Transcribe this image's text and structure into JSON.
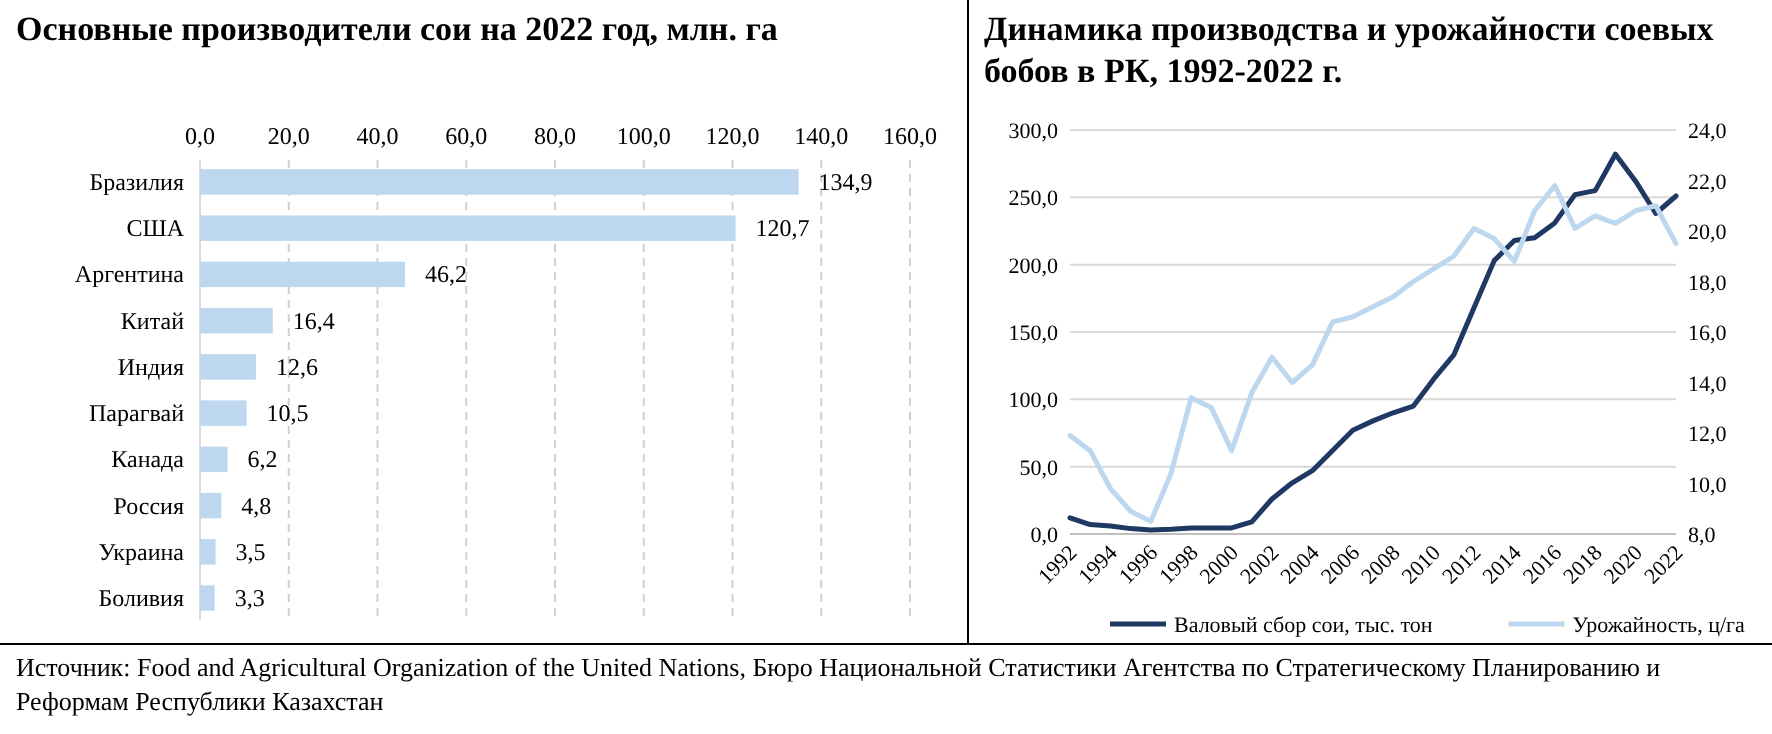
{
  "chart_data": [
    {
      "type": "bar",
      "orientation": "horizontal",
      "title": "Основные производители сои на 2022 год, млн. га",
      "categories": [
        "Бразилия",
        "США",
        "Аргентина",
        "Китай",
        "Индия",
        "Парагвай",
        "Канада",
        "Россия",
        "Украина",
        "Боливия"
      ],
      "values": [
        134.9,
        120.7,
        46.2,
        16.4,
        12.6,
        10.5,
        6.2,
        4.8,
        3.5,
        3.3
      ],
      "value_labels": [
        "134,9",
        "120,7",
        "46,2",
        "16,4",
        "12,6",
        "10,5",
        "6,2",
        "4,8",
        "3,5",
        "3,3"
      ],
      "color": "#bdd7ee",
      "xlim": [
        0,
        160
      ],
      "xticks": [
        {
          "value": 0,
          "label": "0,0"
        },
        {
          "value": 20,
          "label": "20,0"
        },
        {
          "value": 40,
          "label": "40,0"
        },
        {
          "value": 60,
          "label": "60,0"
        },
        {
          "value": 80,
          "label": "80,0"
        },
        {
          "value": 100,
          "label": "100,0"
        },
        {
          "value": 120,
          "label": "120,0"
        },
        {
          "value": 140,
          "label": "140,0"
        },
        {
          "value": 160,
          "label": "160,0"
        }
      ],
      "grid": "x",
      "annotations": [
        "Источник: Food and Agricultural Organization of the United Nations, Бюро Национальной Статистики Агентства по Стратегическому Планированию и Реформам Республики Казахстан"
      ]
    },
    {
      "type": "line",
      "title": "Динамика производства и урожайности соевых бобов в РК, 1992-2022 г.",
      "x": [
        1992,
        1993,
        1994,
        1995,
        1996,
        1997,
        1998,
        1999,
        2000,
        2001,
        2002,
        2003,
        2004,
        2005,
        2006,
        2007,
        2008,
        2009,
        2010,
        2011,
        2012,
        2013,
        2014,
        2015,
        2016,
        2017,
        2018,
        2019,
        2020,
        2021,
        2022
      ],
      "series": [
        {
          "name": "Валовый сбор сои, тыс. тон",
          "color": "#1f3864",
          "values": [
            12,
            7,
            6,
            4,
            3,
            3.5,
            4.5,
            4.5,
            4.5,
            9,
            26,
            38,
            47,
            62,
            77,
            84,
            90,
            95,
            115,
            133,
            168,
            203,
            218,
            220,
            231,
            252,
            255,
            282,
            262,
            238,
            251
          ]
        },
        {
          "name": "Урожайность, ц/га",
          "color": "#bdd7ee",
          "axis": "y2",
          "values": [
            11.9,
            11.3,
            9.8,
            8.9,
            8.5,
            10.4,
            13.4,
            13.0,
            11.3,
            13.6,
            15.0,
            14.0,
            14.7,
            16.4,
            16.6,
            17.0,
            17.4,
            18.0,
            18.5,
            19.0,
            20.1,
            19.7,
            18.8,
            20.8,
            21.8,
            20.1,
            20.6,
            20.3,
            20.8,
            21.0,
            19.5
          ]
        }
      ],
      "xlim": [
        1992,
        2022
      ],
      "xticks": [
        1992,
        1994,
        1996,
        1998,
        2000,
        2002,
        2004,
        2006,
        2008,
        2010,
        2012,
        2014,
        2016,
        2018,
        2020,
        2022
      ],
      "ylim": [
        0,
        300
      ],
      "yticks": [
        {
          "value": 0,
          "label": "0,0"
        },
        {
          "value": 50,
          "label": "50,0"
        },
        {
          "value": 100,
          "label": "100,0"
        },
        {
          "value": 150,
          "label": "150,0"
        },
        {
          "value": 200,
          "label": "200,0"
        },
        {
          "value": 250,
          "label": "250,0"
        },
        {
          "value": 300,
          "label": "300,0"
        }
      ],
      "y2lim": [
        8,
        24
      ],
      "y2ticks": [
        {
          "value": 8,
          "label": "8,0"
        },
        {
          "value": 10,
          "label": "10,0"
        },
        {
          "value": 12,
          "label": "12,0"
        },
        {
          "value": 14,
          "label": "14,0"
        },
        {
          "value": 16,
          "label": "16,0"
        },
        {
          "value": 18,
          "label": "18,0"
        },
        {
          "value": 20,
          "label": "20,0"
        },
        {
          "value": 22,
          "label": "22,0"
        },
        {
          "value": 24,
          "label": "24,0"
        }
      ],
      "grid": "y",
      "legend": "bottom",
      "marker": "none",
      "line_style": "solid"
    }
  ]
}
